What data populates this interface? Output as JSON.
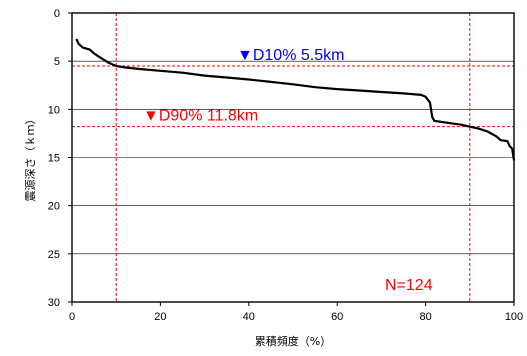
{
  "chart_data": {
    "type": "line",
    "xlabel": "累積頻度（%）",
    "ylabel": "震源深さ（ｋｍ）",
    "xlim": [
      0,
      100
    ],
    "ylim": [
      0,
      30
    ],
    "y_inverted": true,
    "x_ticks": [
      "0",
      "20",
      "40",
      "60",
      "80",
      "100"
    ],
    "y_ticks": [
      "0",
      "5",
      "10",
      "15",
      "20",
      "25",
      "30"
    ],
    "gridlines_y": [
      5,
      10,
      15,
      20,
      25
    ],
    "grid": true,
    "series": [
      {
        "color": "#000000",
        "points": [
          [
            1,
            2.7
          ],
          [
            1.5,
            3.2
          ],
          [
            2.5,
            3.6
          ],
          [
            4,
            3.8
          ],
          [
            5,
            4.2
          ],
          [
            6,
            4.5
          ],
          [
            7,
            4.8
          ],
          [
            8,
            5.1
          ],
          [
            9,
            5.3
          ],
          [
            10,
            5.5
          ],
          [
            12,
            5.65
          ],
          [
            15,
            5.8
          ],
          [
            20,
            6.0
          ],
          [
            25,
            6.2
          ],
          [
            30,
            6.5
          ],
          [
            35,
            6.7
          ],
          [
            40,
            6.9
          ],
          [
            45,
            7.15
          ],
          [
            50,
            7.4
          ],
          [
            55,
            7.7
          ],
          [
            60,
            7.9
          ],
          [
            65,
            8.05
          ],
          [
            70,
            8.2
          ],
          [
            75,
            8.35
          ],
          [
            79,
            8.5
          ],
          [
            80,
            8.7
          ],
          [
            81,
            9.3
          ],
          [
            81.5,
            10.8
          ],
          [
            82,
            11.2
          ],
          [
            85,
            11.4
          ],
          [
            88,
            11.6
          ],
          [
            90,
            11.8
          ],
          [
            92,
            12.0
          ],
          [
            94,
            12.3
          ],
          [
            96,
            12.8
          ],
          [
            97,
            13.2
          ],
          [
            98.5,
            13.3
          ],
          [
            99,
            13.8
          ],
          [
            99.6,
            14.1
          ],
          [
            100,
            15.3
          ]
        ]
      }
    ],
    "reference_lines": [
      {
        "orientation": "horizontal",
        "value": 5.5,
        "color": "#ff0000",
        "style": "dashed"
      },
      {
        "orientation": "horizontal",
        "value": 11.8,
        "color": "#ff0000",
        "style": "dashed"
      },
      {
        "orientation": "vertical",
        "value": 10,
        "color": "#ff0000",
        "style": "dashed"
      },
      {
        "orientation": "vertical",
        "value": 90,
        "color": "#ff0000",
        "style": "dashed"
      }
    ],
    "annotations": [
      {
        "marker": "▼",
        "text": "D10%   5.5km",
        "color": "#0000ff"
      },
      {
        "marker": "▼",
        "text": "D90%  11.8km",
        "color": "#ff0000"
      },
      {
        "text": "N=124",
        "color": "#ff0000"
      }
    ]
  }
}
